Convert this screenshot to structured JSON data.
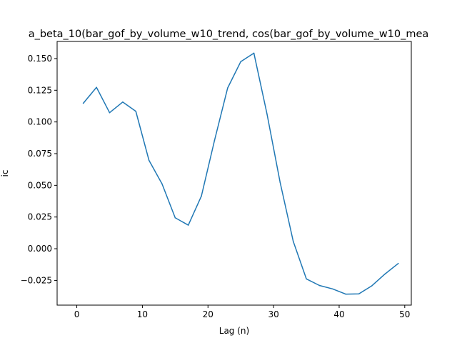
{
  "chart_data": {
    "type": "line",
    "title": "a_beta_10(bar_gof_by_volume_w10_trend, cos(bar_gof_by_volume_w10_mea",
    "xlabel": "Lag (n)",
    "ylabel": "ic",
    "xlim": [
      -3,
      51
    ],
    "ylim": [
      -0.0445,
      0.1635
    ],
    "xticks": [
      0,
      10,
      20,
      30,
      40,
      50
    ],
    "xtick_labels": [
      "0",
      "10",
      "20",
      "30",
      "40",
      "50"
    ],
    "yticks": [
      -0.025,
      0.0,
      0.025,
      0.05,
      0.075,
      0.1,
      0.125,
      0.15
    ],
    "ytick_labels": [
      "−0.025",
      "0.000",
      "0.025",
      "0.050",
      "0.075",
      "0.100",
      "0.125",
      "0.150"
    ],
    "grid": false,
    "line_color": "#1f77b4",
    "series": [
      {
        "x": [
          1,
          3,
          5,
          7,
          9,
          11,
          13,
          15,
          17,
          19,
          21,
          23,
          25,
          27,
          29,
          31,
          33,
          35,
          37,
          39,
          41,
          43,
          45,
          47,
          49
        ],
        "y": [
          0.1148,
          0.1273,
          0.1073,
          0.1157,
          0.1084,
          0.0698,
          0.0511,
          0.0244,
          0.0186,
          0.0416,
          0.0855,
          0.1268,
          0.1476,
          0.1543,
          0.1063,
          0.0523,
          0.0058,
          -0.0238,
          -0.029,
          -0.0317,
          -0.0358,
          -0.0356,
          -0.0292,
          -0.0199,
          -0.0117
        ]
      }
    ]
  }
}
